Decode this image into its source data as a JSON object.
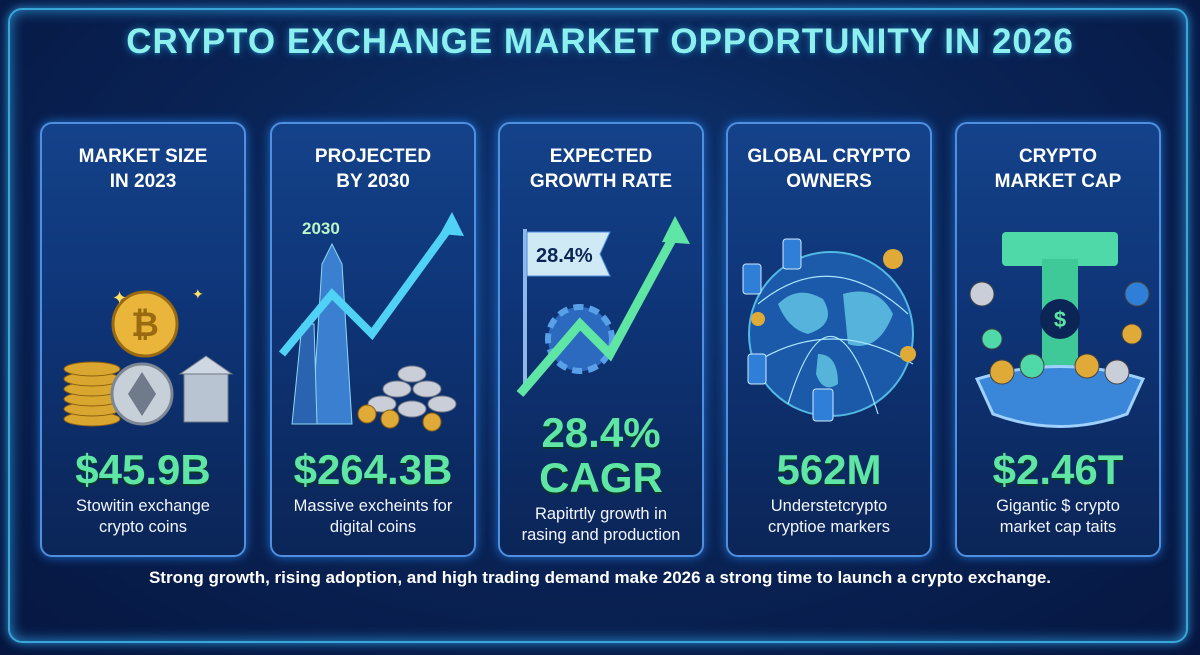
{
  "title": "CRYPTO EXCHANGE MARKET OPPORTUNITY IN 2026",
  "cards": [
    {
      "heading_1": "MARKET SIZE",
      "heading_2": "IN 2023",
      "value": "$45.9B",
      "desc_1": "Stowitin exchange",
      "desc_2": "crypto coins",
      "icon": "coin-stack-icon"
    },
    {
      "heading_1": "PROJECTED",
      "heading_2": "BY 2030",
      "value": "$264.3B",
      "desc_1": "Massive excheints for",
      "desc_2": "digital coins",
      "icon": "skyscraper-growth-icon",
      "label": "2030"
    },
    {
      "heading_1": "EXPECTED",
      "heading_2": "GROWTH RATE",
      "value_1": "28.4%",
      "value_2": "CAGR",
      "desc_1": "Rapitrtly growth in",
      "desc_2": "rasing and production",
      "icon": "growth-flag-gear-icon",
      "flag": "28.4%"
    },
    {
      "heading_1": "GLOBAL CRYPTO",
      "heading_2": "OWNERS",
      "value": "562M",
      "desc_1": "Understetcrypto",
      "desc_2": "cryptioe markers",
      "icon": "globe-network-icon"
    },
    {
      "heading_1": "CRYPTO",
      "heading_2": "MARKET CAP",
      "value": "$2.46T",
      "desc_1": "Gigantic $ crypto",
      "desc_2": "market cap taits",
      "icon": "tether-bowl-icon"
    }
  ],
  "footer": "Strong growth, rising adoption, and high trading demand make 2026 a strong time to launch a crypto exchange.",
  "colors": {
    "accent_green": "#5fe6a4",
    "title_cyan": "#8ef0ee",
    "border_blue": "#4f8fe0",
    "background": "#0a2558"
  }
}
